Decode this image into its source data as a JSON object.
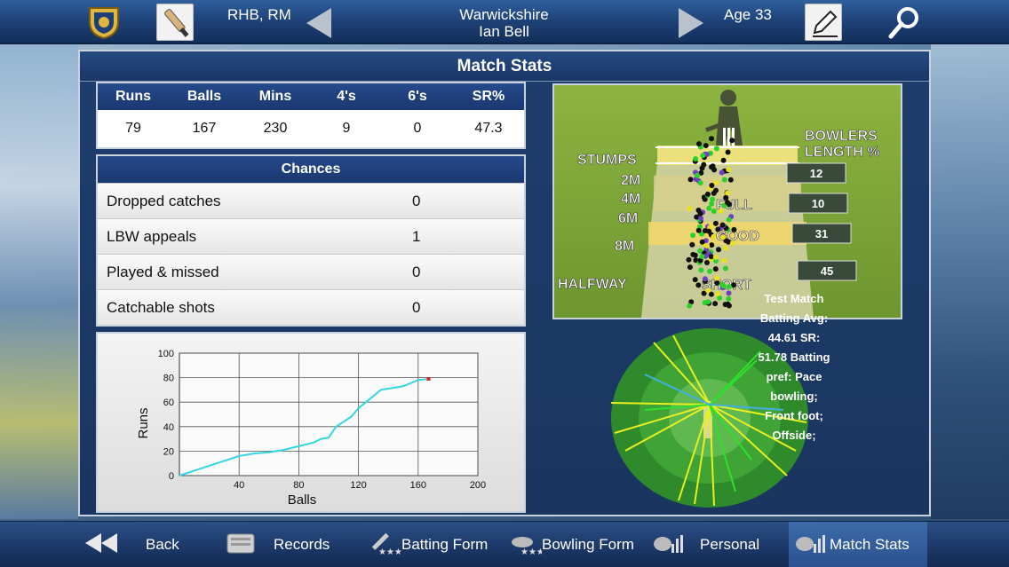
{
  "header": {
    "style": "RHB, RM",
    "team": "Warwickshire",
    "player": "Ian Bell",
    "age": "Age 33"
  },
  "panel": {
    "title": "Match Stats"
  },
  "stats": {
    "headers": [
      "Runs",
      "Balls",
      "Mins",
      "4's",
      "6's",
      "SR%"
    ],
    "values": [
      "79",
      "167",
      "230",
      "9",
      "0",
      "47.3"
    ]
  },
  "chances": {
    "title": "Chances",
    "items": [
      {
        "label": "Dropped catches",
        "value": "0"
      },
      {
        "label": "LBW appeals",
        "value": "1"
      },
      {
        "label": "Played & missed",
        "value": "0"
      },
      {
        "label": "Catchable shots",
        "value": "0"
      }
    ]
  },
  "chart_data": {
    "type": "line",
    "title": "",
    "xlabel": "Balls",
    "ylabel": "Runs",
    "xlim": [
      0,
      200
    ],
    "ylim": [
      0,
      100
    ],
    "xticks": [
      "40",
      "80",
      "120",
      "160",
      "200"
    ],
    "yticks": [
      "0",
      "20",
      "40",
      "60",
      "80",
      "100"
    ],
    "series": [
      {
        "x": [
          0,
          10,
          20,
          30,
          40,
          50,
          60,
          70,
          80,
          90,
          95,
          100,
          105,
          110,
          115,
          120,
          125,
          130,
          135,
          140,
          150,
          160,
          167
        ],
        "y": [
          0,
          4,
          8,
          12,
          16,
          18,
          19,
          21,
          24,
          27,
          30,
          31,
          40,
          44,
          48,
          55,
          60,
          65,
          70,
          71,
          73,
          78,
          79
        ]
      }
    ],
    "color": "#33d6e0",
    "end_marker_color": "#e02020"
  },
  "pitchmap": {
    "labels": {
      "stumps": "STUMPS",
      "m2": "2M",
      "m4": "4M",
      "m6": "6M",
      "m8": "8M",
      "halfway": "HALFWAY",
      "bowlers_length": "BOWLERS",
      "bowlers_length2": "LENGTH %",
      "full": "FULL",
      "good": "GOOD",
      "short": "SHORT"
    },
    "length_pct": [
      "12",
      "10",
      "31",
      "45"
    ]
  },
  "wagon_info": {
    "lines": [
      "Test Match",
      "Batting Avg:",
      "44.61",
      "SR:",
      "51.78",
      "Batting",
      "pref: Pace",
      "bowling;",
      "Front foot;",
      "Offside;"
    ]
  },
  "nav": {
    "back": "Back",
    "records": "Records",
    "batting_form": "Batting Form",
    "bowling_form": "Bowling Form",
    "personal": "Personal",
    "match_stats": "Match Stats"
  },
  "colors": {
    "accent": "#1b3870",
    "line": "#33d6e0",
    "ball_green": "#2bd12b"
  }
}
